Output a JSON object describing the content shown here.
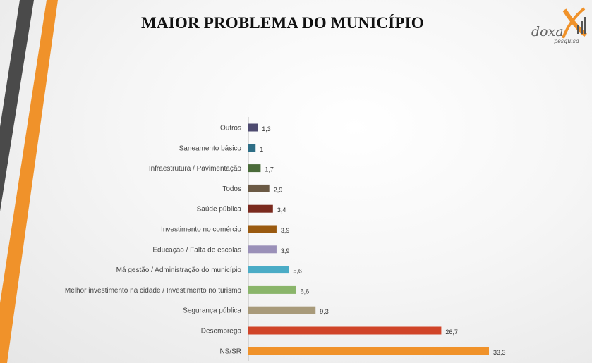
{
  "page": {
    "title": "MAIOR PROBLEMA DO MUNICÍPIO"
  },
  "logo": {
    "word": "doxa",
    "sub": "pesquisa",
    "accent_color": "#F0922A",
    "gray_color": "#555555"
  },
  "chart_data": {
    "type": "bar",
    "orientation": "horizontal",
    "title": "MAIOR PROBLEMA DO MUNICÍPIO",
    "categories": [
      "Outros",
      "Saneamento básico",
      "Infraestrutura / Pavimentação",
      "Todos",
      "Saúde pública",
      "Investimento no comércio",
      "Educação / Falta de escolas",
      "Má gestão / Administração do município",
      "Melhor investimento na cidade / Investimento no turismo",
      "Segurança pública",
      "Desemprego",
      "NS/SR"
    ],
    "values": [
      1.3,
      1,
      1.7,
      2.9,
      3.4,
      3.9,
      3.9,
      5.6,
      6.6,
      9.3,
      26.7,
      33.3
    ],
    "value_labels": [
      "1,3",
      "1",
      "1,7",
      "2,9",
      "3,4",
      "3,9",
      "3,9",
      "5,6",
      "6,6",
      "9,3",
      "26,7",
      "33,3"
    ],
    "colors": [
      "#4E4B70",
      "#2E6E86",
      "#4A6B3A",
      "#6B5A45",
      "#7A2A1E",
      "#9A5A10",
      "#9A90B8",
      "#4BACC6",
      "#8AB56A",
      "#A89A7A",
      "#D04428",
      "#F0922A"
    ],
    "xlim": [
      0,
      33.3
    ],
    "grid": false,
    "legend": "none"
  }
}
